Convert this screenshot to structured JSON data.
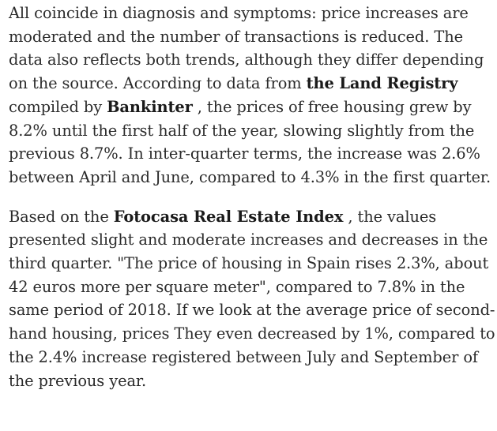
{
  "article": {
    "paragraph1": {
      "l1": "All coincide in diagnosis and symptoms: price increases are",
      "l2": "moderated and the number of transactions is reduced. The",
      "l3": "data also reflects both trends, although they differ depending",
      "l4_pre": "on the source. According to data from ",
      "l4_bold": "the Land Registry",
      "l5_pre": "compiled by ",
      "l5_bold": "Bankinter",
      "l5_post": " , the prices of free housing grew by",
      "l6": "8.2% until the first half of the year, slowing slightly from the",
      "l7": "previous 8.7%. In inter-quarter terms, the increase was 2.6%",
      "l8": "between April and June, compared to 4.3% in the first quarter."
    },
    "paragraph2": {
      "l1_pre": "Based on the ",
      "l1_bold": "Fotocasa Real Estate Index",
      "l1_post": " , the values",
      "l2": "presented slight and moderate increases and decreases in the",
      "l3": "third quarter. \"The price of housing in Spain rises 2.3%, about",
      "l4": "42 euros more per square meter\", compared to 7.8% in the",
      "l5": "same period of 2018. If we look at the average price of second-",
      "l6": "hand housing, prices They even decreased by 1%, compared to",
      "l7": "the 2.4% increase registered between July and September of",
      "l8": "the previous year."
    }
  }
}
